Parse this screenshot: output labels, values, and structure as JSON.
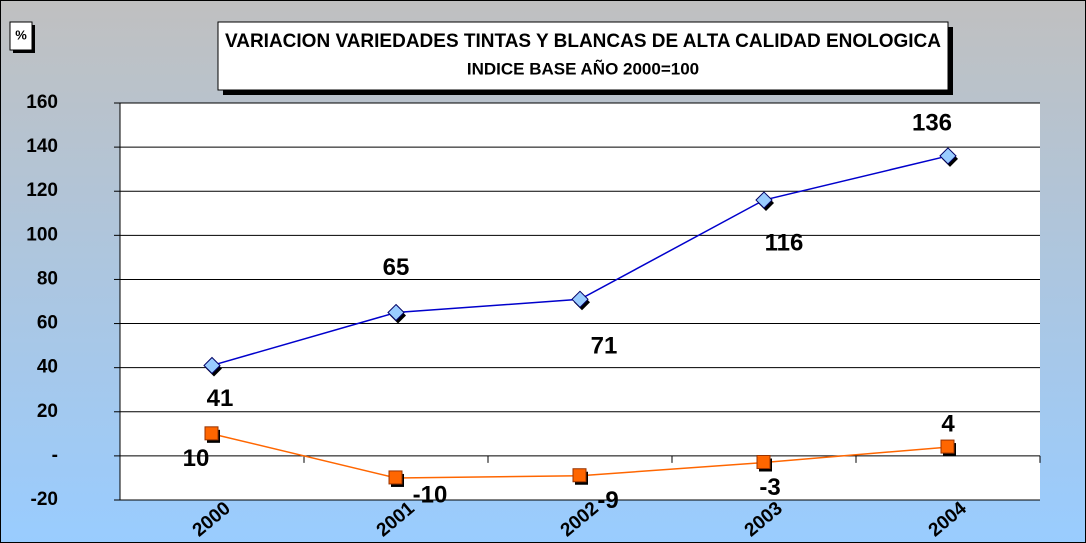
{
  "chart_data": {
    "type": "line",
    "title": "VARIACION VARIEDADES TINTAS Y BLANCAS DE ALTA CALIDAD ENOLOGICA",
    "subtitle": "INDICE BASE AÑO 2000=100",
    "y_label": "%",
    "categories": [
      "2000",
      "2001",
      "2002",
      "2003",
      "2004"
    ],
    "series": [
      {
        "color": "#0000cc",
        "marker_color": "#99ccff",
        "values": [
          41,
          65,
          71,
          116,
          136
        ]
      },
      {
        "color": "#ff6600",
        "marker_color": "#ff6600",
        "values": [
          10,
          -10,
          -9,
          -3,
          4
        ]
      }
    ],
    "ylim": [
      -20,
      160
    ],
    "yticks": [
      -20,
      {
        "value": 0,
        "label": "-"
      },
      20,
      40,
      60,
      80,
      100,
      120,
      140,
      160
    ],
    "grid": true
  }
}
